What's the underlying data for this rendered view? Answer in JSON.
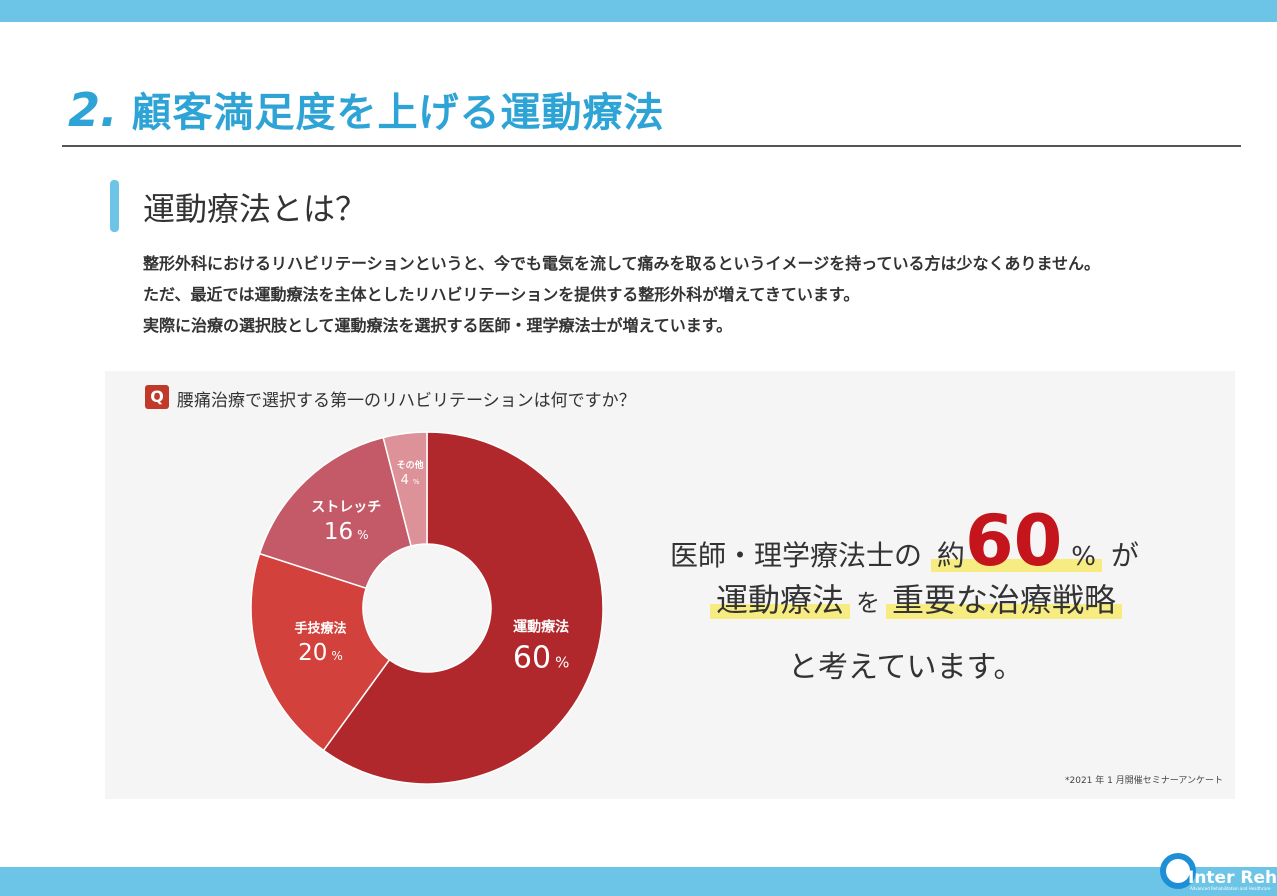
{
  "header": {
    "number": "2.",
    "title": "顧客満足度を上げる運動療法"
  },
  "section": {
    "title": "運動療法とは？",
    "paragraphs": [
      "整形外科におけるリハビリテーションというと、今でも電気を流して痛みを取るというイメージを持っている方は少なくありません。",
      "ただ、最近では運動療法を主体としたリハビリテーションを提供する整形外科が増えてきています。",
      "実際に治療の選択肢として運動療法を選択する医師・理学療法士が増えています。"
    ]
  },
  "survey": {
    "q_label": "Q",
    "question": "腰痛治療で選択する第一のリハビリテーションは何ですか？",
    "footnote": "*2021 年 1 月開催セミナーアンケート"
  },
  "chart_data": {
    "type": "pie",
    "donut": true,
    "categories": [
      "運動療法",
      "手技療法",
      "ストレッチ",
      "その他"
    ],
    "values": [
      60,
      20,
      16,
      4
    ],
    "value_labels": [
      "60",
      "20",
      "16",
      "4"
    ],
    "unit": "%",
    "colors": [
      "#b0282c",
      "#d2413b",
      "#c45a68",
      "#dc9298"
    ]
  },
  "message": {
    "line1_prefix": "医師・理学療法士の",
    "line1_approx": "約",
    "line1_number": "60",
    "line1_pct": "%",
    "line1_suffix": "が",
    "line2_a": "運動療法",
    "line2_mid": "を",
    "line2_b": "重要な治療戦略",
    "line3": "と考えています。"
  },
  "logo": {
    "name": "Inter Reha",
    "tagline": "Advanced Rehabilitation and Healthcare"
  }
}
